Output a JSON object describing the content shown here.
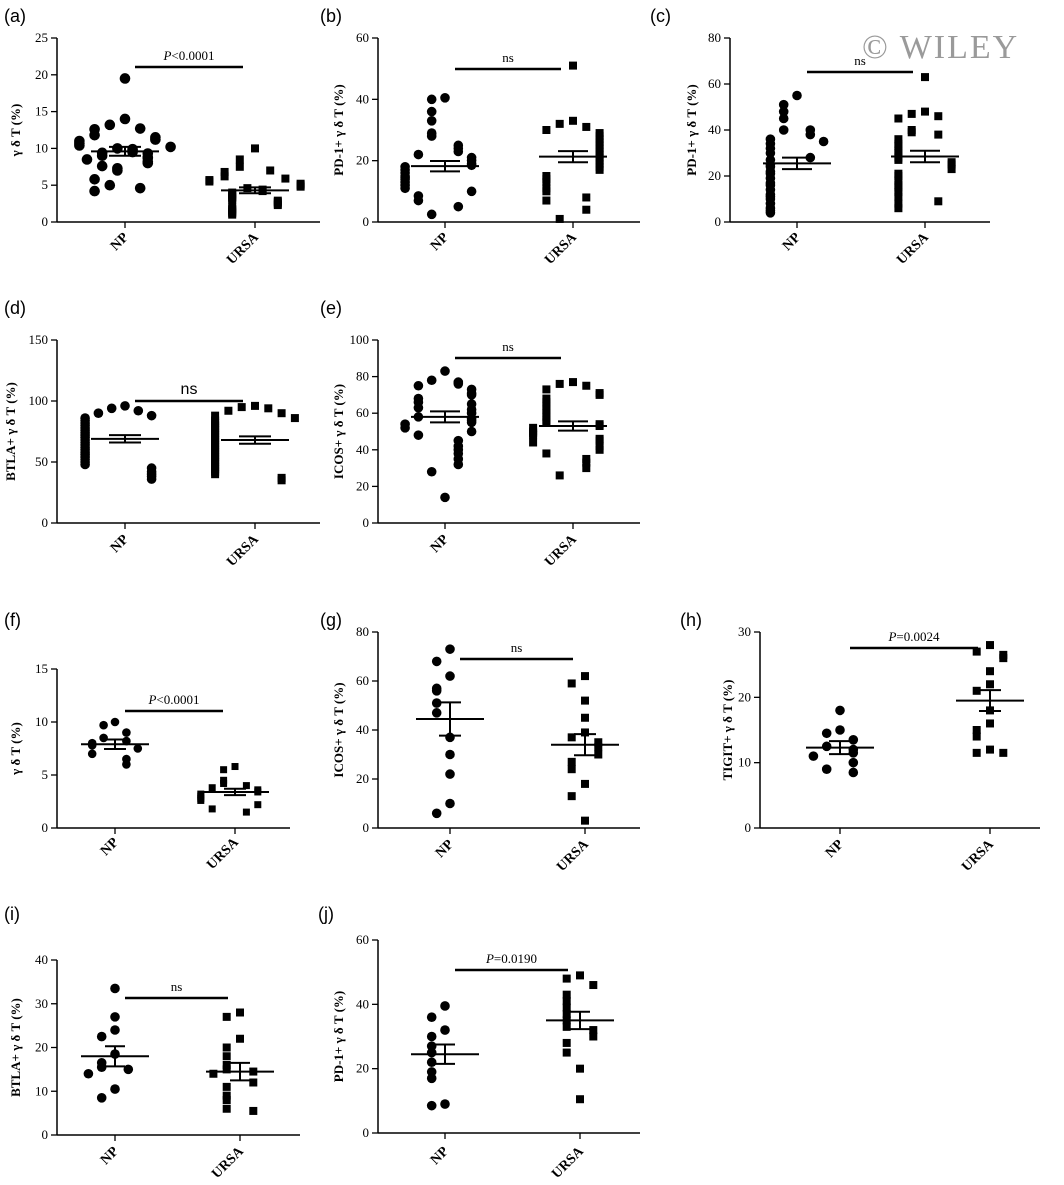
{
  "watermark": "© WILEY",
  "chart_data": [
    {
      "panel": "(a)",
      "type": "scatter",
      "ylabel": "γ δ T (%)",
      "categories": [
        "NP",
        "URSA"
      ],
      "ylim": [
        0,
        25
      ],
      "yticks": [
        0,
        5,
        10,
        15,
        20,
        25
      ],
      "annotation": {
        "text": "P<0.0001",
        "italic_prefix": "P",
        "rest": "<0.0001"
      },
      "groups": [
        {
          "name": "NP",
          "marker": "circle",
          "mean": 9.6,
          "sem": 0.6,
          "values": [
            19.5,
            14,
            13.2,
            12.7,
            12.6,
            11.8,
            11.5,
            11.2,
            11,
            10.7,
            10.4,
            10.2,
            10,
            9.9,
            9.7,
            9.5,
            9.4,
            9.3,
            9,
            8.8,
            8.7,
            8.5,
            8.2,
            8,
            7.6,
            7.3,
            7,
            5.8,
            5,
            4.6,
            4.2
          ]
        },
        {
          "name": "URSA",
          "marker": "square",
          "mean": 4.3,
          "sem": 0.4,
          "values": [
            10,
            8.5,
            7.5,
            7,
            6.8,
            6.2,
            5.9,
            5.7,
            5.5,
            5.2,
            5,
            4.8,
            4.6,
            4.4,
            4.2,
            4,
            3.8,
            3.6,
            3.4,
            3.2,
            3,
            2.9,
            2.7,
            2.5,
            2.3,
            2,
            1.8,
            1.6,
            1.4,
            1.2,
            1
          ]
        }
      ]
    },
    {
      "panel": "(b)",
      "type": "scatter",
      "ylabel": "PD-1+ γ δ T (%)",
      "categories": [
        "NP",
        "URSA"
      ],
      "ylim": [
        0,
        60
      ],
      "yticks": [
        0,
        20,
        40,
        60
      ],
      "annotation": {
        "text": "ns"
      },
      "groups": [
        {
          "name": "NP",
          "marker": "circle",
          "mean": 18.2,
          "sem": 1.7,
          "values": [
            40.5,
            40,
            36,
            33,
            29,
            28,
            25,
            24,
            23,
            22,
            21,
            20,
            19,
            18.5,
            18,
            17,
            16,
            15,
            14.5,
            14,
            13,
            12,
            11,
            10,
            8.5,
            7,
            5,
            2.5
          ]
        },
        {
          "name": "URSA",
          "marker": "square",
          "mean": 21.3,
          "sem": 1.8,
          "values": [
            51,
            33,
            32,
            31,
            30,
            29,
            28,
            27,
            26,
            25,
            24,
            23,
            22,
            21,
            20,
            19,
            18,
            17,
            15,
            14,
            13,
            11,
            10,
            8,
            7,
            4,
            1
          ]
        }
      ]
    },
    {
      "panel": "(c)",
      "type": "scatter",
      "ylabel": "PD-1+ γ δ T (%)",
      "categories": [
        "NP",
        "URSA"
      ],
      "ylim": [
        0,
        80
      ],
      "yticks": [
        0,
        20,
        40,
        60,
        80
      ],
      "annotation": {
        "text": "ns"
      },
      "groups": [
        {
          "name": "NP",
          "marker": "circle",
          "mean": 25.5,
          "sem": 2.5,
          "values": [
            55,
            51,
            48,
            45,
            40,
            40,
            38,
            36,
            35,
            34,
            32,
            30,
            28,
            27,
            25,
            24,
            22,
            21,
            19,
            17,
            16,
            14,
            12,
            11,
            10,
            8,
            6,
            5,
            4
          ]
        },
        {
          "name": "URSA",
          "marker": "square",
          "mean": 28.5,
          "sem": 2.5,
          "values": [
            63,
            48,
            47,
            46,
            45,
            40,
            39,
            38,
            36,
            34,
            33,
            31,
            30,
            28,
            27,
            26,
            25,
            23,
            21,
            20,
            18,
            16,
            15,
            13,
            11,
            9,
            8,
            6
          ]
        }
      ]
    },
    {
      "panel": "(d)",
      "type": "scatter",
      "ylabel": "BTLA+ γ δ T (%)",
      "categories": [
        "NP",
        "URSA"
      ],
      "ylim": [
        0,
        150
      ],
      "yticks": [
        0,
        50,
        100,
        150
      ],
      "annotation": {
        "text": "ns",
        "sans": true
      },
      "groups": [
        {
          "name": "NP",
          "marker": "circle",
          "mean": 69,
          "sem": 3,
          "values": [
            96,
            94,
            92,
            90,
            88,
            86,
            84,
            82,
            80,
            78,
            76,
            74,
            72,
            70,
            68,
            66,
            64,
            62,
            60,
            58,
            56,
            54,
            52,
            50,
            48,
            45,
            42,
            40,
            38,
            36
          ]
        },
        {
          "name": "URSA",
          "marker": "square",
          "mean": 68,
          "sem": 3,
          "values": [
            96,
            95,
            94,
            92,
            90,
            88,
            86,
            84,
            82,
            80,
            78,
            76,
            74,
            72,
            70,
            68,
            66,
            64,
            62,
            60,
            58,
            56,
            54,
            52,
            50,
            48,
            46,
            44,
            42,
            40,
            37,
            35
          ]
        }
      ]
    },
    {
      "panel": "(e)",
      "type": "scatter",
      "ylabel": "ICOS+ γ δ T (%)",
      "categories": [
        "NP",
        "URSA"
      ],
      "ylim": [
        0,
        100
      ],
      "yticks": [
        0,
        20,
        40,
        60,
        80,
        100
      ],
      "annotation": {
        "text": "ns"
      },
      "groups": [
        {
          "name": "NP",
          "marker": "circle",
          "mean": 58,
          "sem": 3,
          "values": [
            83,
            78,
            77,
            76,
            75,
            73,
            71,
            70,
            68,
            66,
            65,
            63,
            62,
            60,
            58,
            57,
            56,
            55,
            54,
            52,
            50,
            48,
            45,
            42,
            40,
            38,
            35,
            32,
            28,
            14
          ]
        },
        {
          "name": "URSA",
          "marker": "square",
          "mean": 53,
          "sem": 2.5,
          "values": [
            77,
            76,
            75,
            73,
            71,
            70,
            68,
            66,
            64,
            62,
            60,
            58,
            56,
            55,
            54,
            53,
            52,
            50,
            49,
            48,
            46,
            45,
            44,
            42,
            40,
            38,
            35,
            33,
            30,
            26
          ]
        }
      ]
    },
    {
      "panel": "(f)",
      "type": "scatter",
      "ylabel": "γ δ T (%)",
      "categories": [
        "NP",
        "URSA"
      ],
      "ylim": [
        0,
        15
      ],
      "yticks": [
        0,
        5,
        10,
        15
      ],
      "annotation": {
        "text": "P<0.0001",
        "italic_prefix": "P",
        "rest": "<0.0001"
      },
      "groups": [
        {
          "name": "NP",
          "marker": "circle",
          "mean": 7.9,
          "sem": 0.45,
          "values": [
            10,
            9.7,
            9,
            8.5,
            8.2,
            8,
            7.8,
            7.5,
            7,
            6.5,
            6
          ]
        },
        {
          "name": "URSA",
          "marker": "square",
          "mean": 3.4,
          "sem": 0.3,
          "values": [
            5.8,
            5.5,
            4.5,
            4.2,
            4,
            3.8,
            3.6,
            3.4,
            3.2,
            3,
            2.8,
            2.6,
            2.2,
            1.8,
            1.5
          ]
        }
      ]
    },
    {
      "panel": "(g)",
      "type": "scatter",
      "ylabel": "ICOS+ γ δ T (%)",
      "categories": [
        "NP",
        "URSA"
      ],
      "ylim": [
        0,
        80
      ],
      "yticks": [
        0,
        20,
        40,
        60,
        80
      ],
      "annotation": {
        "text": "ns"
      },
      "groups": [
        {
          "name": "NP",
          "marker": "circle",
          "mean": 44.5,
          "sem": 6.8,
          "values": [
            73,
            68,
            62,
            57,
            56,
            51,
            47,
            37,
            30,
            22,
            10,
            6
          ]
        },
        {
          "name": "URSA",
          "marker": "square",
          "mean": 34,
          "sem": 4.3,
          "values": [
            62,
            59,
            52,
            45,
            39,
            37,
            35,
            33,
            30,
            27,
            24,
            18,
            13,
            3
          ]
        }
      ]
    },
    {
      "panel": "(h)",
      "type": "scatter",
      "ylabel": "TIGIT+ γ δ T (%)",
      "categories": [
        "NP",
        "URSA"
      ],
      "ylim": [
        0,
        30
      ],
      "yticks": [
        0,
        10,
        20,
        30
      ],
      "annotation": {
        "text": "P=0.0024",
        "italic_prefix": "P",
        "rest": "=0.0024"
      },
      "groups": [
        {
          "name": "NP",
          "marker": "circle",
          "mean": 12.3,
          "sem": 1,
          "values": [
            18,
            15,
            14.5,
            13.5,
            12.5,
            12,
            11.5,
            11,
            10,
            9,
            8.5
          ]
        },
        {
          "name": "URSA",
          "marker": "square",
          "mean": 19.5,
          "sem": 1.6,
          "values": [
            28,
            27,
            26.5,
            26,
            24,
            22,
            21,
            18,
            16,
            15,
            14,
            12,
            11.5,
            11.5
          ]
        }
      ]
    },
    {
      "panel": "(i)",
      "type": "scatter",
      "ylabel": "BTLA+ γ δ T (%)",
      "categories": [
        "NP",
        "URSA"
      ],
      "ylim": [
        0,
        40
      ],
      "yticks": [
        0,
        10,
        20,
        30,
        40
      ],
      "annotation": {
        "text": "ns"
      },
      "groups": [
        {
          "name": "NP",
          "marker": "circle",
          "mean": 18,
          "sem": 2.3,
          "values": [
            33.5,
            27,
            24,
            22.5,
            18.5,
            16.5,
            15.5,
            15,
            14,
            10.5,
            8.5
          ]
        },
        {
          "name": "URSA",
          "marker": "square",
          "mean": 14.5,
          "sem": 2,
          "values": [
            28,
            27,
            22,
            20,
            18,
            16,
            15,
            14.5,
            14,
            12,
            11,
            9,
            8,
            6,
            5.5
          ]
        }
      ]
    },
    {
      "panel": "(j)",
      "type": "scatter",
      "ylabel": "PD-1+ γ δ T (%)",
      "categories": [
        "NP",
        "URSA"
      ],
      "ylim": [
        0,
        60
      ],
      "yticks": [
        0,
        20,
        40,
        60
      ],
      "annotation": {
        "text": "P=0.0190",
        "italic_prefix": "P",
        "rest": "=0.0190"
      },
      "groups": [
        {
          "name": "NP",
          "marker": "circle",
          "mean": 24.5,
          "sem": 3,
          "values": [
            39.5,
            36,
            32,
            30,
            27,
            25,
            22,
            19,
            17,
            9,
            8.5
          ]
        },
        {
          "name": "URSA",
          "marker": "square",
          "mean": 35,
          "sem": 2.7,
          "values": [
            49,
            48,
            46,
            43,
            41,
            39,
            37,
            35,
            33,
            32,
            30,
            28,
            25,
            20,
            10.5
          ]
        }
      ]
    }
  ]
}
